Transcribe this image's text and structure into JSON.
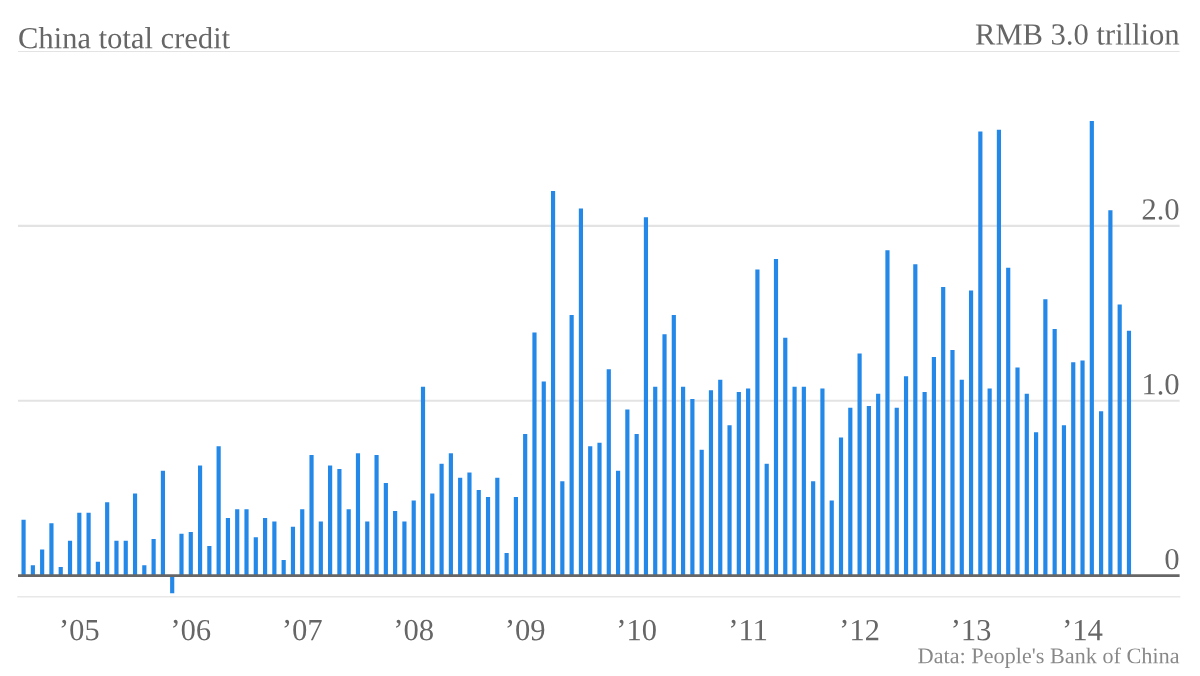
{
  "chart_data": {
    "type": "bar",
    "title": "China total credit",
    "categories": [
      null,
      null,
      null,
      null,
      null,
      null,
      "’05",
      null,
      null,
      null,
      null,
      null,
      null,
      null,
      null,
      null,
      null,
      null,
      "’06",
      null,
      null,
      null,
      null,
      null,
      null,
      null,
      null,
      null,
      null,
      null,
      "’07",
      null,
      null,
      null,
      null,
      null,
      null,
      null,
      null,
      null,
      null,
      null,
      "’08",
      null,
      null,
      null,
      null,
      null,
      null,
      null,
      null,
      null,
      null,
      null,
      "’09",
      null,
      null,
      null,
      null,
      null,
      null,
      null,
      null,
      null,
      null,
      null,
      "’10",
      null,
      null,
      null,
      null,
      null,
      null,
      null,
      null,
      null,
      null,
      null,
      "’11",
      null,
      null,
      null,
      null,
      null,
      null,
      null,
      null,
      null,
      null,
      null,
      "’12",
      null,
      null,
      null,
      null,
      null,
      null,
      null,
      null,
      null,
      null,
      null,
      "’13",
      null,
      null,
      null,
      null,
      null,
      null,
      null,
      null,
      null,
      null,
      null,
      "’14",
      null,
      null,
      null,
      null,
      null
    ],
    "values": [
      0.32,
      0.06,
      0.15,
      0.3,
      0.05,
      0.2,
      0.36,
      0.36,
      0.08,
      0.42,
      0.2,
      0.2,
      0.47,
      0.06,
      0.21,
      0.6,
      -0.1,
      0.24,
      0.25,
      0.63,
      0.17,
      0.74,
      0.33,
      0.38,
      0.38,
      0.22,
      0.33,
      0.31,
      0.09,
      0.28,
      0.38,
      0.69,
      0.31,
      0.63,
      0.61,
      0.38,
      0.7,
      0.31,
      0.69,
      0.53,
      0.37,
      0.31,
      0.43,
      1.08,
      0.47,
      0.64,
      0.7,
      0.56,
      0.59,
      0.49,
      0.45,
      0.56,
      0.13,
      0.45,
      0.81,
      1.39,
      1.11,
      2.2,
      0.54,
      1.49,
      2.1,
      0.74,
      0.76,
      1.18,
      0.6,
      0.95,
      0.81,
      2.05,
      1.08,
      1.38,
      1.49,
      1.08,
      1.01,
      0.72,
      1.06,
      1.12,
      0.86,
      1.05,
      1.07,
      1.75,
      0.64,
      1.81,
      1.36,
      1.08,
      1.08,
      0.54,
      1.07,
      0.43,
      0.79,
      0.96,
      1.27,
      0.97,
      1.04,
      1.86,
      0.96,
      1.14,
      1.78,
      1.05,
      1.25,
      1.65,
      1.29,
      1.12,
      1.63,
      2.54,
      1.07,
      2.55,
      1.76,
      1.19,
      1.04,
      0.82,
      1.58,
      1.41,
      0.86,
      1.22,
      1.23,
      2.6,
      0.94,
      2.09,
      1.55,
      1.4
    ],
    "color": "#2388e8",
    "ylim": [
      -0.12,
      3.0
    ],
    "yticks": [
      {
        "value": 0,
        "label": "0"
      },
      {
        "value": 1,
        "label": "1.0"
      },
      {
        "value": 2,
        "label": "2.0"
      },
      {
        "value": 3,
        "label": "RMB 3.0 trillion"
      }
    ],
    "grid": "y",
    "ref_lines": [
      {
        "axis": "y",
        "value": 0,
        "color": "#666666"
      }
    ],
    "annotations": [
      "Data: People's Bank of China"
    ]
  }
}
